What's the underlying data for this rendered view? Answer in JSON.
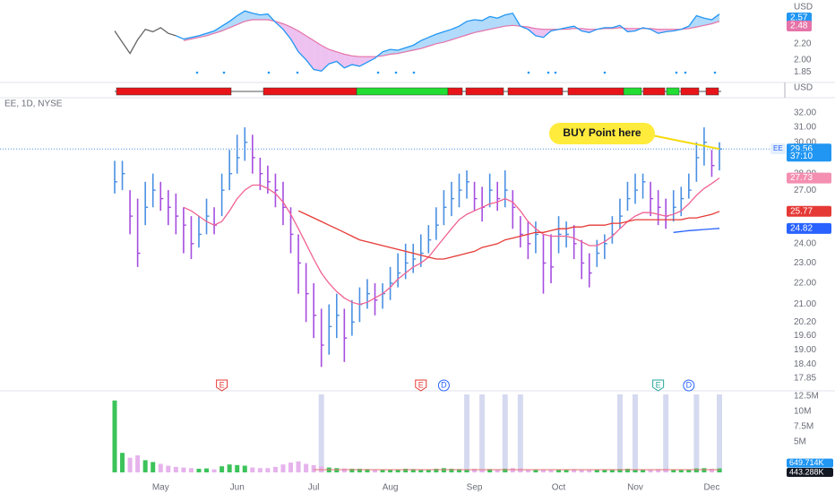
{
  "chart_data": [
    {
      "type": "line",
      "axis_unit": "USD",
      "lead_color": "#666666",
      "up_fill": "#90caf9",
      "down_fill": "#e6a8ea",
      "ylim": [
        1.74,
        2.69
      ],
      "yticks": [
        {
          "value": 1.85,
          "label": "1.85"
        },
        {
          "value": 2,
          "label": "2.00"
        },
        {
          "value": 2.2,
          "label": "2.20"
        }
      ],
      "series": [
        {
          "color": "#2196f3",
          "values": [
            2.36,
            2.22,
            2.08,
            2.25,
            2.38,
            2.35,
            2.4,
            2.33,
            2.3,
            2.26,
            2.28,
            2.3,
            2.33,
            2.36,
            2.42,
            2.48,
            2.55,
            2.61,
            2.58,
            2.56,
            2.57,
            2.47,
            2.38,
            2.26,
            2.1,
            2.0,
            1.88,
            1.86,
            1.95,
            1.98,
            1.9,
            1.94,
            1.92,
            1.97,
            2.02,
            2.1,
            2.13,
            2.12,
            2.15,
            2.18,
            2.24,
            2.28,
            2.32,
            2.35,
            2.38,
            2.42,
            2.48,
            2.5,
            2.49,
            2.54,
            2.52,
            2.56,
            2.58,
            2.42,
            2.38,
            2.3,
            2.28,
            2.36,
            2.38,
            2.4,
            2.42,
            2.36,
            2.34,
            2.38,
            2.4,
            2.4,
            2.43,
            2.35,
            2.36,
            2.4,
            2.38,
            2.33,
            2.35,
            2.36,
            2.38,
            2.42,
            2.55,
            2.52,
            2.5,
            2.57
          ]
        },
        {
          "color": "#e573a8",
          "values": [
            null,
            null,
            null,
            null,
            null,
            null,
            null,
            null,
            null,
            2.24,
            2.26,
            2.28,
            2.3,
            2.33,
            2.36,
            2.4,
            2.44,
            2.48,
            2.5,
            2.5,
            2.5,
            2.48,
            2.45,
            2.41,
            2.36,
            2.3,
            2.24,
            2.18,
            2.13,
            2.1,
            2.07,
            2.05,
            2.04,
            2.04,
            2.04,
            2.05,
            2.07,
            2.08,
            2.1,
            2.12,
            2.14,
            2.17,
            2.2,
            2.22,
            2.25,
            2.28,
            2.31,
            2.34,
            2.36,
            2.38,
            2.4,
            2.42,
            2.43,
            2.42,
            2.41,
            2.39,
            2.38,
            2.38,
            2.38,
            2.38,
            2.39,
            2.39,
            2.38,
            2.38,
            2.39,
            2.39,
            2.4,
            2.39,
            2.39,
            2.39,
            2.39,
            2.38,
            2.38,
            2.38,
            2.38,
            2.39,
            2.41,
            2.43,
            2.45,
            2.48
          ]
        }
      ]
    },
    {
      "type": "ohlc",
      "title": "EE, 1D, NYSE",
      "symbol": "EE",
      "axis_unit": "USD",
      "countdown": "37:10",
      "annotation": "BUY Point here",
      "events": [
        "E",
        "E",
        "D",
        "E",
        "D"
      ],
      "up_color": "#4a90e2",
      "down_color": "#a64de0",
      "log_y": true,
      "ylim": [
        17.57,
        32.7
      ],
      "yticks": [
        {
          "value": 17.85,
          "label": "17.85"
        },
        {
          "value": 18.4,
          "label": "18.40"
        },
        {
          "value": 19,
          "label": "19.00"
        },
        {
          "value": 19.6,
          "label": "19.60"
        },
        {
          "value": 20.2,
          "label": "20.20"
        },
        {
          "value": 21,
          "label": "21.00"
        },
        {
          "value": 22,
          "label": "22.00"
        },
        {
          "value": 23,
          "label": "23.00"
        },
        {
          "value": 24,
          "label": "24.00"
        },
        {
          "value": 27,
          "label": "27.00"
        },
        {
          "value": 28,
          "label": "28.00"
        },
        {
          "value": 30,
          "label": "30.00"
        },
        {
          "value": 31,
          "label": "31.00"
        },
        {
          "value": 32,
          "label": "32.00"
        }
      ],
      "high": [
        28.8,
        28.8,
        27.0,
        26.5,
        27.5,
        28.0,
        27.5,
        27.0,
        26.8,
        26.0,
        25.5,
        25.5,
        26.5,
        26.0,
        28.0,
        29.5,
        30.5,
        31.0,
        30.5,
        29.0,
        28.5,
        28.0,
        27.5,
        26.0,
        24.5,
        23.0,
        22.0,
        20.8,
        21.0,
        21.5,
        20.8,
        21.2,
        21.8,
        22.2,
        22.0,
        22.0,
        22.8,
        23.5,
        24.0,
        24.0,
        24.5,
        25.0,
        26.0,
        27.0,
        27.5,
        28.0,
        28.2,
        27.5,
        27.2,
        28.0,
        27.5,
        28.2,
        27.0,
        25.5,
        25.2,
        25.2,
        24.5,
        24.5,
        25.5,
        25.2,
        25.0,
        24.2,
        23.5,
        24.2,
        24.5,
        25.5,
        26.5,
        27.5,
        28.0,
        28.0,
        27.5,
        27.0,
        26.5,
        27.0,
        27.2,
        28.0,
        30.0,
        31.0,
        29.5,
        30.0
      ],
      "low": [
        26.8,
        27.0,
        24.5,
        22.8,
        25.0,
        26.0,
        25.8,
        25.0,
        24.5,
        23.5,
        23.2,
        23.8,
        24.5,
        24.5,
        25.5,
        27.0,
        28.0,
        28.8,
        28.0,
        27.0,
        26.8,
        26.0,
        25.0,
        23.5,
        21.5,
        20.2,
        19.5,
        18.3,
        18.8,
        19.5,
        18.5,
        19.6,
        20.2,
        20.8,
        20.5,
        20.8,
        21.2,
        21.8,
        22.2,
        22.5,
        22.8,
        23.5,
        24.2,
        25.0,
        25.5,
        26.0,
        26.5,
        25.8,
        25.2,
        26.0,
        25.8,
        26.0,
        24.8,
        23.8,
        23.2,
        23.5,
        21.5,
        22.0,
        23.5,
        23.8,
        23.2,
        22.2,
        21.8,
        22.8,
        23.2,
        24.0,
        24.8,
        25.8,
        26.2,
        26.5,
        25.5,
        25.0,
        24.8,
        25.2,
        25.5,
        26.5,
        27.5,
        28.5,
        27.8,
        28.2
      ],
      "close": [
        27.5,
        28.0,
        25.5,
        23.5,
        26.0,
        27.0,
        26.5,
        26.0,
        25.5,
        25.0,
        24.0,
        24.5,
        25.5,
        25.0,
        27.0,
        28.0,
        29.0,
        30.0,
        29.0,
        28.0,
        27.5,
        27.0,
        26.0,
        24.5,
        23.0,
        21.5,
        20.5,
        19.2,
        20.0,
        20.5,
        19.5,
        20.2,
        21.0,
        21.5,
        21.2,
        21.5,
        22.0,
        22.5,
        23.0,
        23.2,
        23.5,
        24.2,
        25.0,
        26.0,
        26.5,
        27.0,
        27.5,
        26.5,
        26.0,
        27.0,
        26.5,
        27.0,
        26.0,
        24.5,
        24.0,
        24.5,
        23.0,
        22.8,
        24.5,
        24.5,
        24.0,
        23.0,
        22.5,
        23.5,
        24.0,
        24.5,
        25.5,
        26.5,
        27.0,
        27.5,
        26.5,
        26.0,
        25.5,
        26.0,
        26.5,
        27.0,
        29.0,
        30.0,
        28.5,
        29.56
      ],
      "series": [
        {
          "color": "#f06292",
          "values": [
            null,
            null,
            null,
            null,
            null,
            null,
            null,
            null,
            null,
            26.0,
            25.8,
            25.5,
            25.2,
            25.0,
            25.2,
            25.8,
            26.5,
            27.0,
            27.3,
            27.3,
            27.1,
            26.8,
            26.3,
            25.6,
            24.8,
            24.0,
            23.2,
            22.5,
            22.0,
            21.6,
            21.3,
            21.1,
            21.0,
            21.1,
            21.3,
            21.5,
            21.8,
            22.2,
            22.5,
            22.8,
            23.0,
            23.3,
            23.8,
            24.3,
            24.8,
            25.3,
            25.6,
            25.8,
            26.0,
            26.2,
            26.3,
            26.5,
            26.3,
            25.8,
            25.2,
            24.8,
            24.5,
            24.4,
            24.4,
            24.4,
            24.3,
            24.1,
            23.9,
            23.9,
            24.1,
            24.4,
            24.8,
            25.2,
            25.5,
            25.7,
            25.7,
            25.6,
            25.5,
            25.6,
            25.8,
            26.2,
            26.7,
            27.1,
            27.4,
            27.73
          ]
        },
        {
          "color": "#e53935",
          "values": [
            null,
            null,
            null,
            null,
            null,
            null,
            null,
            null,
            null,
            null,
            null,
            null,
            null,
            null,
            null,
            null,
            null,
            null,
            null,
            null,
            null,
            null,
            null,
            null,
            25.8,
            25.6,
            25.4,
            25.2,
            25.0,
            24.8,
            24.6,
            24.4,
            24.2,
            24.1,
            24.0,
            23.9,
            23.8,
            23.7,
            23.6,
            23.5,
            23.4,
            23.3,
            23.2,
            23.2,
            23.3,
            23.4,
            23.5,
            23.6,
            23.8,
            23.9,
            24.0,
            24.2,
            24.3,
            24.4,
            24.5,
            24.6,
            24.6,
            24.7,
            24.8,
            24.8,
            24.9,
            24.9,
            25.0,
            25.0,
            25.0,
            25.1,
            25.1,
            25.2,
            25.3,
            25.3,
            25.3,
            25.3,
            25.3,
            25.3,
            25.3,
            25.4,
            25.4,
            25.5,
            25.6,
            25.77
          ]
        },
        {
          "color": "#2962ff",
          "values": [
            null,
            null,
            null,
            null,
            null,
            null,
            null,
            null,
            null,
            null,
            null,
            null,
            null,
            null,
            null,
            null,
            null,
            null,
            null,
            null,
            null,
            null,
            null,
            null,
            null,
            null,
            null,
            null,
            null,
            null,
            null,
            null,
            null,
            null,
            null,
            null,
            null,
            null,
            null,
            null,
            null,
            null,
            null,
            null,
            null,
            null,
            null,
            null,
            null,
            null,
            null,
            null,
            null,
            null,
            null,
            null,
            null,
            null,
            null,
            null,
            null,
            null,
            null,
            null,
            null,
            null,
            null,
            null,
            null,
            null,
            null,
            null,
            null,
            24.6,
            24.65,
            24.7,
            24.73,
            24.76,
            24.79,
            24.82
          ]
        }
      ]
    },
    {
      "type": "bar",
      "up_color": "#3cc35a",
      "down_color": "#e6b3ec",
      "categories": [
        null,
        null,
        null,
        null,
        null,
        null,
        "May",
        null,
        null,
        null,
        null,
        null,
        null,
        null,
        null,
        null,
        "Jun",
        null,
        null,
        null,
        null,
        null,
        null,
        null,
        null,
        null,
        "Jul",
        null,
        null,
        null,
        null,
        null,
        null,
        null,
        null,
        null,
        "Aug",
        null,
        null,
        null,
        null,
        null,
        null,
        null,
        null,
        null,
        null,
        "Sep",
        null,
        null,
        null,
        null,
        null,
        null,
        null,
        null,
        null,
        null,
        "Oct",
        null,
        null,
        null,
        null,
        null,
        null,
        null,
        null,
        null,
        "Nov",
        null,
        null,
        null,
        null,
        null,
        null,
        null,
        null,
        null,
        "Dec",
        null
      ],
      "values": [
        11800000,
        3200000,
        2400000,
        2800000,
        2000000,
        1700000,
        1400000,
        1100000,
        900000,
        800000,
        700000,
        600000,
        650000,
        500000,
        1000000,
        1300000,
        1200000,
        1100000,
        800000,
        700000,
        700000,
        900000,
        1300000,
        1600000,
        1800000,
        1400000,
        1200000,
        1000000,
        800000,
        700000,
        650000,
        600000,
        600000,
        550000,
        500000,
        500000,
        450000,
        500000,
        600000,
        550000,
        500000,
        500000,
        600000,
        700000,
        600000,
        550000,
        500000,
        600000,
        500000,
        550000,
        500000,
        600000,
        700000,
        650000,
        500000,
        450000,
        500000,
        500000,
        450000,
        500000,
        550000,
        500000,
        450000,
        500000,
        500000,
        450000,
        550000,
        600000,
        500000,
        450000,
        500000,
        550000,
        600000,
        500000,
        450000,
        500000,
        650000,
        700000,
        600000,
        649714
      ],
      "volume_badges": [
        {
          "value": 649714,
          "label": "649.714K"
        },
        {
          "value": 443288,
          "label": "443.288K"
        }
      ],
      "ylim": [
        0,
        12800000
      ],
      "yticks": [
        {
          "value": 5000000,
          "label": "5M"
        },
        {
          "value": 7500000,
          "label": "7.5M"
        },
        {
          "value": 10000000,
          "label": "10M"
        },
        {
          "value": 12500000,
          "label": "12.5M"
        }
      ]
    }
  ]
}
